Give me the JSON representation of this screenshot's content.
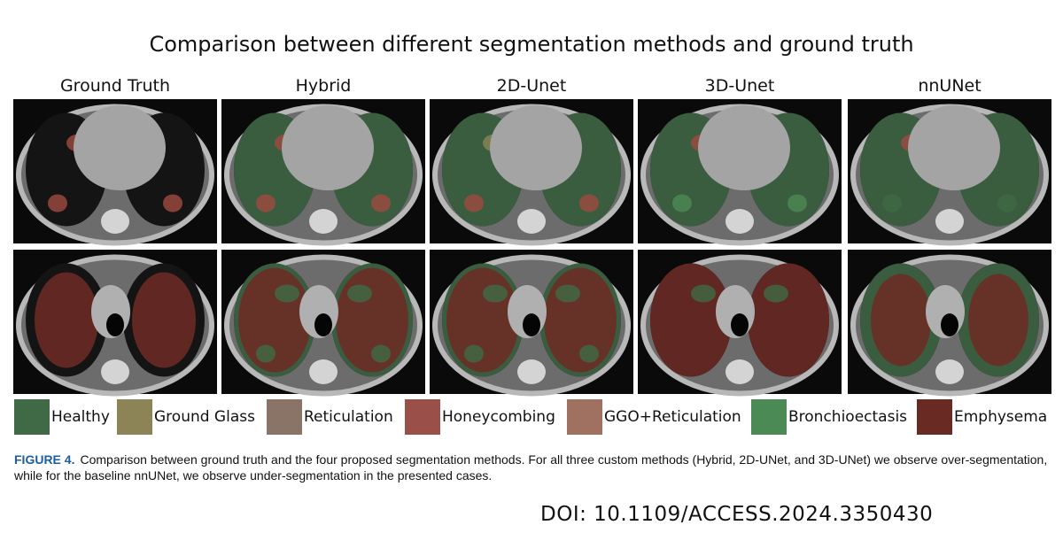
{
  "title": "Comparison between different segmentation methods and ground truth",
  "columns": [
    "Ground Truth",
    "Hybrid",
    "2D-Unet",
    "3D-Unet",
    "nnUNet"
  ],
  "legend": [
    "Healthy",
    "Ground Glass",
    "Reticulation",
    "Honeycombing",
    "GGO+Reticulation",
    "Bronchioectasis",
    "Emphysema"
  ],
  "caption": {
    "label": "FIGURE 4.",
    "text": "Comparison between ground truth and the four proposed segmentation methods. For all three custom methods (Hybrid, 2D-UNet, and 3D-UNet) we observe over-segmentation, while for the baseline nnUNet, we observe under-segmentation in the presented cases."
  },
  "doi": "DOI: 10.1109/ACCESS.2024.3350430"
}
